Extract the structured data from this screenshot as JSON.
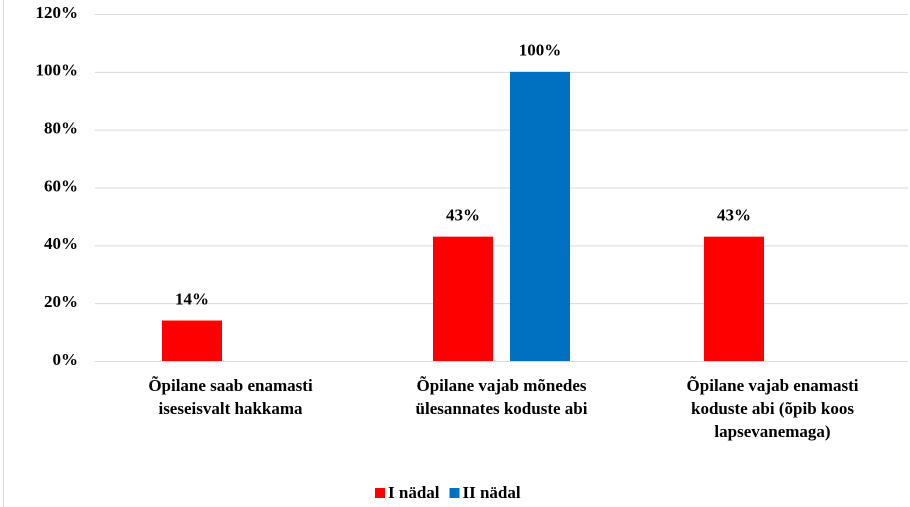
{
  "chart_data": {
    "type": "bar",
    "categories": [
      [
        "Õpilane saab enamasti",
        "iseseisvalt hakkama"
      ],
      [
        "Õpilane vajab mõnedes",
        "ülesannates koduste abi"
      ],
      [
        "Õpilane vajab enamasti",
        "koduste abi (õpib koos",
        "lapsevanemaga)"
      ]
    ],
    "series": [
      {
        "name": "I nädal",
        "color": "#ff0000",
        "values": [
          14,
          43,
          43
        ],
        "value_labels": [
          "14%",
          "43%",
          "43%"
        ]
      },
      {
        "name": "II nädal",
        "color": "#0070c0",
        "values": [
          null,
          100,
          null
        ],
        "value_labels": [
          null,
          "100%",
          null
        ]
      }
    ],
    "ylim": [
      0,
      120
    ],
    "yticks": [
      {
        "value": 0,
        "label": "0%"
      },
      {
        "value": 20,
        "label": "20%"
      },
      {
        "value": 40,
        "label": "40%"
      },
      {
        "value": 60,
        "label": "60%"
      },
      {
        "value": 80,
        "label": "80%"
      },
      {
        "value": 100,
        "label": "100%"
      },
      {
        "value": 120,
        "label": "120%"
      }
    ],
    "grid": true,
    "legend": "bottom"
  }
}
